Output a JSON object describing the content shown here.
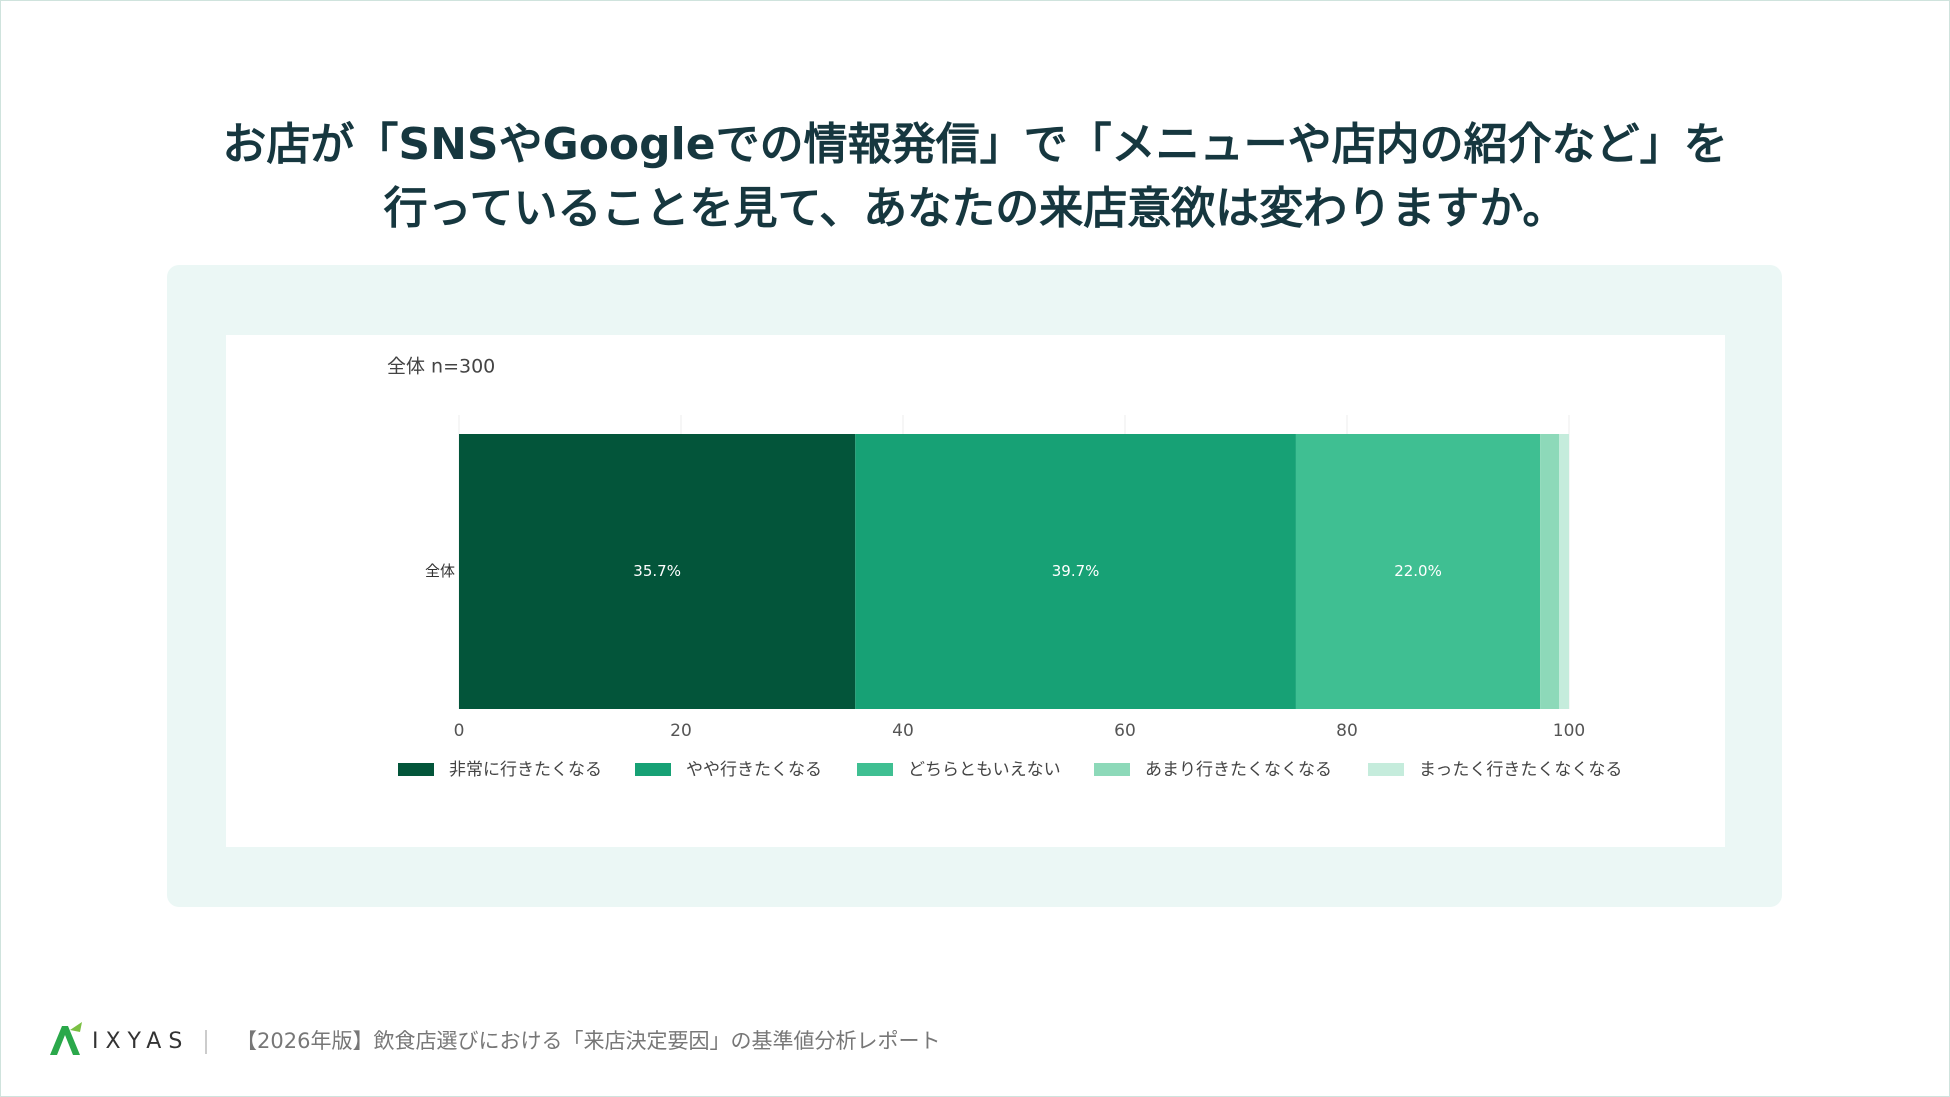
{
  "chart_data": {
    "type": "stacked-barh",
    "title": [
      "お店が「SNSやGoogleでの情報発信」で「メニューや店内の紹介など」を",
      "行っていることを見て、あなたの来店意欲は変わりますか。"
    ],
    "subtitle": "全体 n=300",
    "categories": [
      "全体"
    ],
    "series": [
      {
        "name": "非常に行きたくなる",
        "color": "#03553a",
        "values": [
          35.7
        ],
        "value_labels": [
          "35.7%"
        ]
      },
      {
        "name": "やや行きたくなる",
        "color": "#17a175",
        "values": [
          39.7
        ],
        "value_labels": [
          "39.7%"
        ]
      },
      {
        "name": "どちらともいえない",
        "color": "#3fbf92",
        "values": [
          22.0
        ],
        "value_labels": [
          "22.0%"
        ]
      },
      {
        "name": "あまり行きたくなくなる",
        "color": "#8dd9b9",
        "values": [
          1.7
        ]
      },
      {
        "name": "まったく行きたくなくなる",
        "color": "#c5ecdc",
        "values": [
          0.9
        ]
      }
    ],
    "xlim": [
      0,
      100
    ],
    "xticks": [
      0,
      20,
      40,
      60,
      80,
      100
    ],
    "grid": true,
    "legend": "bottom"
  },
  "footer": {
    "logo": "IXYAS",
    "text": "【2026年版】飲食店選びにおける「来店決定要因」の基準値分析レポート"
  }
}
